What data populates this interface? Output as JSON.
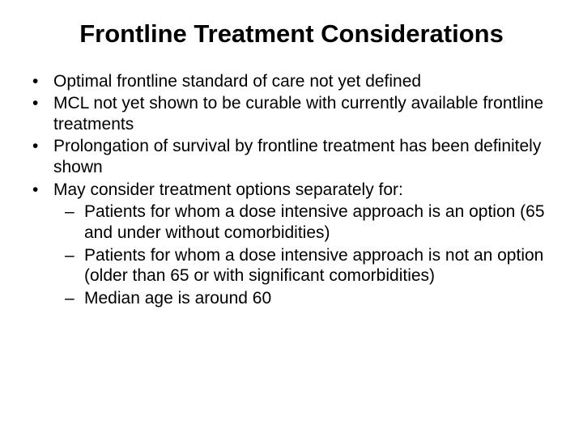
{
  "slide": {
    "background_color": "#ffffff",
    "text_color": "#000000",
    "font_family": "Arial",
    "title": {
      "text": "Frontline Treatment Considerations",
      "fontsize": 31,
      "weight": "bold",
      "align": "center"
    },
    "bullets": {
      "level1_marker": "•",
      "level2_marker": "–",
      "fontsize": 21,
      "items": [
        {
          "text": "Optimal frontline standard of care not yet defined"
        },
        {
          "text": "MCL not yet shown to be curable with currently available frontline treatments"
        },
        {
          "text": "Prolongation of survival by frontline treatment has been definitely shown"
        },
        {
          "text": "May consider treatment options separately for:",
          "subitems": [
            "Patients for whom a dose intensive approach is an option (65 and under without comorbidities)",
            "Patients for whom a dose intensive approach is not an option (older than 65 or with significant comorbidities)",
            "Median age is around 60"
          ]
        }
      ]
    }
  }
}
